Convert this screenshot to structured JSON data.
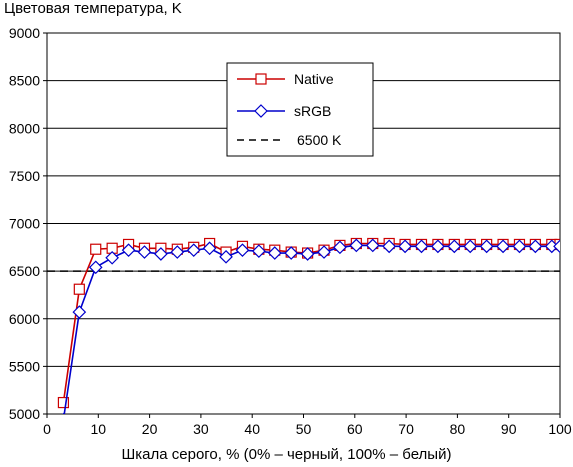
{
  "chart_data": {
    "type": "line",
    "title": "Цветовая температура, K",
    "xlabel": "Шкала серого, % (0% – черный, 100% – белый)",
    "ylabel": "",
    "xlim": [
      0,
      100
    ],
    "ylim": [
      5000,
      9000
    ],
    "x_ticks": [
      0,
      10,
      20,
      30,
      40,
      50,
      60,
      70,
      80,
      90,
      100
    ],
    "y_ticks": [
      5000,
      5500,
      6000,
      6500,
      7000,
      7500,
      8000,
      8500,
      9000
    ],
    "grid": "horizontal",
    "legend_position": "top-center",
    "series": [
      {
        "name": "Native",
        "color": "#cc0000",
        "marker": "square",
        "x": [
          3.2,
          6.3,
          9.5,
          12.7,
          15.9,
          19.0,
          22.2,
          25.4,
          28.6,
          31.7,
          34.9,
          38.1,
          41.3,
          44.4,
          47.6,
          50.8,
          54.0,
          57.1,
          60.3,
          63.5,
          66.7,
          69.8,
          73.0,
          76.2,
          79.4,
          82.5,
          85.7,
          88.9,
          92.1,
          95.2,
          98.4,
          100
        ],
        "values": [
          5120,
          6310,
          6730,
          6740,
          6780,
          6740,
          6740,
          6730,
          6750,
          6790,
          6700,
          6760,
          6730,
          6720,
          6700,
          6690,
          6720,
          6770,
          6790,
          6790,
          6790,
          6780,
          6780,
          6780,
          6780,
          6780,
          6780,
          6780,
          6780,
          6780,
          6780,
          6780
        ]
      },
      {
        "name": "sRGB",
        "color": "#0000cc",
        "marker": "diamond",
        "x": [
          3.2,
          6.3,
          9.5,
          12.7,
          15.9,
          19.0,
          22.2,
          25.4,
          28.6,
          31.7,
          34.9,
          38.1,
          41.3,
          44.4,
          47.6,
          50.8,
          54.0,
          57.1,
          60.3,
          63.5,
          66.7,
          69.8,
          73.0,
          76.2,
          79.4,
          82.5,
          85.7,
          88.9,
          92.1,
          95.2,
          98.4,
          100
        ],
        "values": [
          4940,
          6070,
          6540,
          6640,
          6720,
          6700,
          6680,
          6700,
          6720,
          6740,
          6650,
          6720,
          6710,
          6690,
          6690,
          6680,
          6700,
          6750,
          6770,
          6770,
          6760,
          6760,
          6760,
          6760,
          6760,
          6760,
          6760,
          6760,
          6760,
          6760,
          6760,
          6760
        ]
      },
      {
        "name": "6500 K",
        "color": "#000000",
        "marker": "none",
        "dashed": true,
        "x": [
          0,
          100
        ],
        "values": [
          6500,
          6500
        ]
      }
    ]
  }
}
